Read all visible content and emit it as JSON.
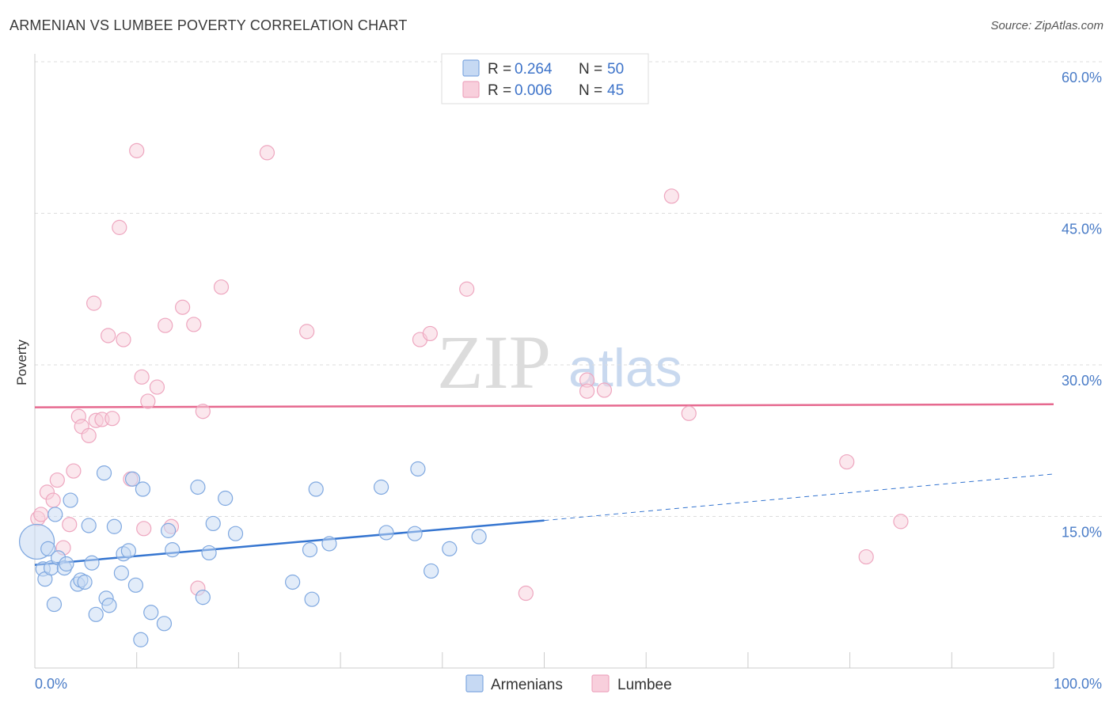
{
  "title": "ARMENIAN VS LUMBEE POVERTY CORRELATION CHART",
  "source": "Source: ZipAtlas.com",
  "watermark": {
    "zip": "ZIP",
    "atlas": "atlas"
  },
  "chart_data": {
    "type": "scatter",
    "ylabel": "Poverty",
    "xlim": [
      0,
      100
    ],
    "ylim": [
      0,
      60
    ],
    "y_ticks": [
      {
        "value": 15,
        "label": "15.0%"
      },
      {
        "value": 30,
        "label": "30.0%"
      },
      {
        "value": 45,
        "label": "45.0%"
      },
      {
        "value": 60,
        "label": "60.0%"
      }
    ],
    "x_tick_labels": [
      {
        "value": 0,
        "label": "0.0%"
      },
      {
        "value": 100,
        "label": "100.0%"
      }
    ],
    "stats": [
      {
        "r_label": "R =",
        "r_value": "0.264",
        "n_label": "N =",
        "n_value": "50"
      },
      {
        "r_label": "R =",
        "r_value": "0.006",
        "n_label": "N =",
        "n_value": "45"
      }
    ],
    "series": [
      {
        "name": "Armenians",
        "color": "#7fa8e0",
        "fill": "#c6d9f3",
        "trend": {
          "x0": 0,
          "y0": 10.2,
          "x1": 50,
          "y1": 14.6,
          "x_end": 100,
          "y_end": 19.2,
          "line_color": "#3575d0"
        },
        "points": [
          [
            0.2,
            12.5
          ],
          [
            0.8,
            9.8
          ],
          [
            1.0,
            8.8
          ],
          [
            1.3,
            11.8
          ],
          [
            1.6,
            9.9
          ],
          [
            1.9,
            6.3
          ],
          [
            2.0,
            15.2
          ],
          [
            2.3,
            10.9
          ],
          [
            2.9,
            9.9
          ],
          [
            3.1,
            10.3
          ],
          [
            3.5,
            16.6
          ],
          [
            4.2,
            8.3
          ],
          [
            4.5,
            8.7
          ],
          [
            4.9,
            8.5
          ],
          [
            5.3,
            14.1
          ],
          [
            5.6,
            10.4
          ],
          [
            6.0,
            5.3
          ],
          [
            6.8,
            19.3
          ],
          [
            7.0,
            6.9
          ],
          [
            7.3,
            6.2
          ],
          [
            7.8,
            14.0
          ],
          [
            8.5,
            9.4
          ],
          [
            8.7,
            11.3
          ],
          [
            9.2,
            11.6
          ],
          [
            9.6,
            18.7
          ],
          [
            9.9,
            8.2
          ],
          [
            10.4,
            2.8
          ],
          [
            10.6,
            17.7
          ],
          [
            11.4,
            5.5
          ],
          [
            12.7,
            4.4
          ],
          [
            13.1,
            13.6
          ],
          [
            13.5,
            11.7
          ],
          [
            16.0,
            17.9
          ],
          [
            16.5,
            7.0
          ],
          [
            17.1,
            11.4
          ],
          [
            17.5,
            14.3
          ],
          [
            18.7,
            16.8
          ],
          [
            19.7,
            13.3
          ],
          [
            25.3,
            8.5
          ],
          [
            27.0,
            11.7
          ],
          [
            27.2,
            6.8
          ],
          [
            27.6,
            17.7
          ],
          [
            28.9,
            12.3
          ],
          [
            34.0,
            17.9
          ],
          [
            34.5,
            13.4
          ],
          [
            37.3,
            13.3
          ],
          [
            37.6,
            19.7
          ],
          [
            38.9,
            9.6
          ],
          [
            40.7,
            11.8
          ],
          [
            43.6,
            13.0
          ]
        ]
      },
      {
        "name": "Lumbee",
        "color": "#eea6bf",
        "fill": "#f8cfdc",
        "trend": {
          "x0": 0,
          "y0": 25.8,
          "x1": 100,
          "y1": 26.1,
          "line_color": "#e6698f"
        },
        "points": [
          [
            0.3,
            14.8
          ],
          [
            0.6,
            15.2
          ],
          [
            1.2,
            17.4
          ],
          [
            1.8,
            16.6
          ],
          [
            2.2,
            18.6
          ],
          [
            2.8,
            11.9
          ],
          [
            3.4,
            14.2
          ],
          [
            3.8,
            19.5
          ],
          [
            4.3,
            24.9
          ],
          [
            4.6,
            23.9
          ],
          [
            5.3,
            23.0
          ],
          [
            5.8,
            36.1
          ],
          [
            6.0,
            24.5
          ],
          [
            6.6,
            24.6
          ],
          [
            7.2,
            32.9
          ],
          [
            7.6,
            24.7
          ],
          [
            8.3,
            43.6
          ],
          [
            8.7,
            32.5
          ],
          [
            9.4,
            18.7
          ],
          [
            10.0,
            51.2
          ],
          [
            10.5,
            28.8
          ],
          [
            10.7,
            13.8
          ],
          [
            11.1,
            26.4
          ],
          [
            12.0,
            27.8
          ],
          [
            12.8,
            33.9
          ],
          [
            13.4,
            14.0
          ],
          [
            14.5,
            35.7
          ],
          [
            15.6,
            34.0
          ],
          [
            16.0,
            7.9
          ],
          [
            16.5,
            25.4
          ],
          [
            18.3,
            37.7
          ],
          [
            22.8,
            51.0
          ],
          [
            26.7,
            33.3
          ],
          [
            37.8,
            32.5
          ],
          [
            38.8,
            33.1
          ],
          [
            42.4,
            37.5
          ],
          [
            48.2,
            7.4
          ],
          [
            54.2,
            28.5
          ],
          [
            54.2,
            27.4
          ],
          [
            55.9,
            27.5
          ],
          [
            62.5,
            46.7
          ],
          [
            64.2,
            25.2
          ],
          [
            79.7,
            20.4
          ],
          [
            81.6,
            11.0
          ],
          [
            85.0,
            14.5
          ]
        ]
      }
    ]
  }
}
